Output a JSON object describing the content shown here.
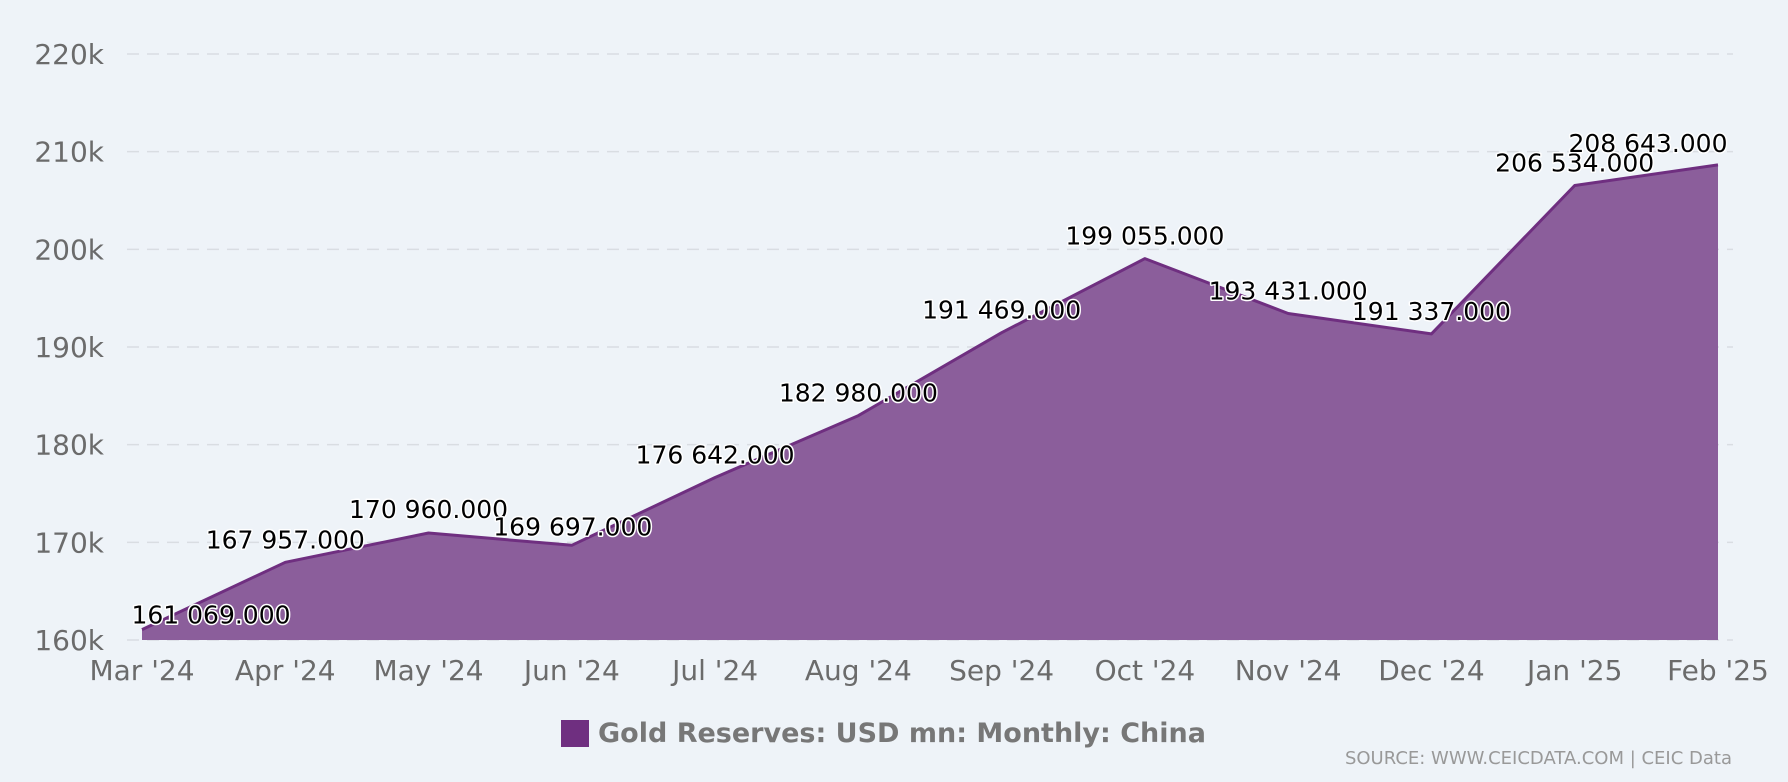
{
  "chart_data": {
    "type": "area",
    "title": "",
    "xlabel": "",
    "ylabel": "",
    "categories": [
      "Mar '24",
      "Apr '24",
      "May '24",
      "Jun '24",
      "Jul '24",
      "Aug '24",
      "Sep '24",
      "Oct '24",
      "Nov '24",
      "Dec '24",
      "Jan '25",
      "Feb '25"
    ],
    "series": [
      {
        "name": "Gold Reserves: USD mn: Monthly: China",
        "color": "#6F2F80",
        "fill": "#8B5E9B",
        "values": [
          161069.0,
          167957.0,
          170960.0,
          169697.0,
          176642.0,
          182980.0,
          191469.0,
          199055.0,
          193431.0,
          191337.0,
          206534.0,
          208643.0
        ],
        "data_labels": [
          "161 069.000",
          "167 957.000",
          "170 960.000",
          "169 697.000",
          "176 642.000",
          "182 980.000",
          "191 469.000",
          "199 055.000",
          "193 431.000",
          "191 337.000",
          "206 534.000",
          "208 643.000"
        ]
      }
    ],
    "yticks": [
      160000,
      170000,
      180000,
      190000,
      200000,
      210000,
      220000
    ],
    "ytick_labels": [
      "160k",
      "170k",
      "180k",
      "190k",
      "200k",
      "210k",
      "220k"
    ],
    "ylim": [
      160000,
      220000
    ],
    "grid": true,
    "legend_position": "bottom-center"
  },
  "legend": {
    "label": "Gold Reserves: USD mn: Monthly: China",
    "color": "#6F2F80"
  },
  "source": "SOURCE: WWW.CEICDATA.COM | CEIC Data",
  "colors": {
    "background": "#EEF3F8",
    "line": "#6F2F80",
    "fill": "#8B5E9B",
    "axis_text": "#6b6b6b"
  }
}
